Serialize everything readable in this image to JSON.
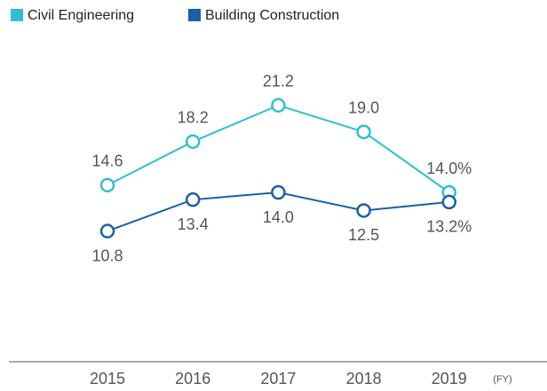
{
  "chart_data": {
    "type": "line",
    "categories": [
      "2015",
      "2016",
      "2017",
      "2018",
      "2019"
    ],
    "x_label": "(FY)",
    "series": [
      {
        "name": "Civil Engineering",
        "color": "#2fc0d0",
        "values": [
          14.6,
          18.2,
          21.2,
          19.0,
          14.0
        ],
        "value_labels": [
          "14.6",
          "18.2",
          "21.2",
          "19.0",
          "14.0%"
        ],
        "label_side": "above"
      },
      {
        "name": "Building Construction",
        "color": "#1a5fa8",
        "values": [
          10.8,
          13.4,
          14.0,
          12.5,
          13.2
        ],
        "value_labels": [
          "10.8",
          "13.4",
          "14.0",
          "12.5",
          "13.2%"
        ],
        "label_side": "below"
      }
    ],
    "ylim": [
      0,
      28
    ],
    "grid": false,
    "legend": "top-left"
  }
}
